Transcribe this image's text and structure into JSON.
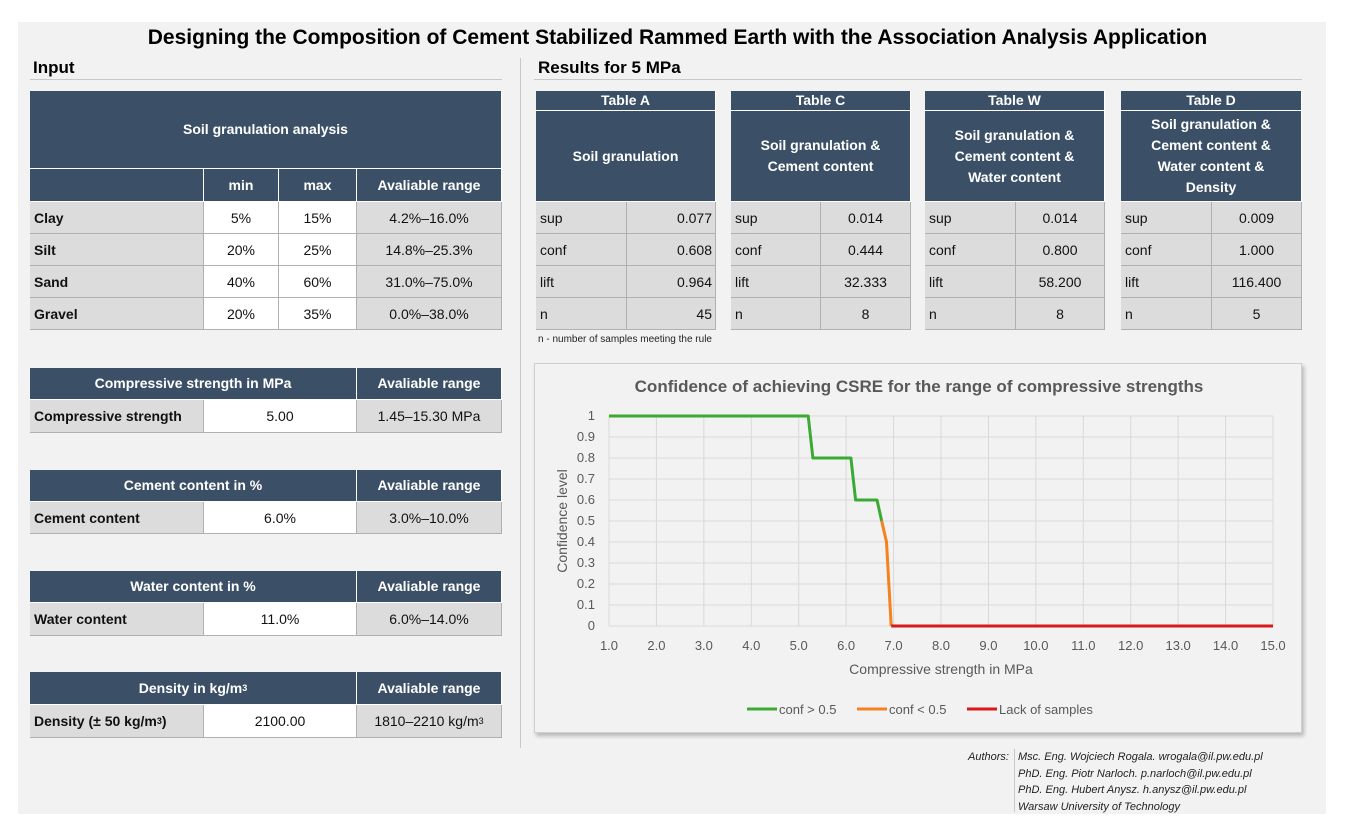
{
  "title": "Designing the Composition of Cement Stabilized Rammed Earth with the Association Analysis Application",
  "input": {
    "heading": "Input",
    "soil": {
      "header": "Soil granulation analysis",
      "cols": [
        "min",
        "max",
        "Avaliable range"
      ],
      "rows": [
        {
          "name": "Clay",
          "min": "5%",
          "max": "15%",
          "range": "4.2%–16.0%"
        },
        {
          "name": "Silt",
          "min": "20%",
          "max": "25%",
          "range": "14.8%–25.3%"
        },
        {
          "name": "Sand",
          "min": "40%",
          "max": "60%",
          "range": "31.0%–75.0%"
        },
        {
          "name": "Gravel",
          "min": "20%",
          "max": "35%",
          "range": "0.0%–38.0%"
        }
      ]
    },
    "strength": {
      "header": "Compressive strength in MPa",
      "range_header": "Avaliable range",
      "label": "Compressive strength",
      "value": "5.00",
      "range": "1.45–15.30 MPa"
    },
    "cement": {
      "header": "Cement content in %",
      "range_header": "Avaliable range",
      "label": "Cement content",
      "value": "6.0%",
      "range": "3.0%–10.0%"
    },
    "water": {
      "header": "Water content in %",
      "range_header": "Avaliable range",
      "label": "Water content",
      "value": "11.0%",
      "range": "6.0%–14.0%"
    },
    "density": {
      "header": "Density in kg/m",
      "header_sup": "3",
      "range_header": "Avaliable range",
      "label": "Density (± 50 kg/m",
      "label_sup": "3",
      "label_end": ")",
      "value": "2100.00",
      "range": "1810–2210 kg/m",
      "range_sup": "3"
    }
  },
  "results": {
    "heading": "Results for 5 MPa",
    "note": "n - number of samples meeting the rule",
    "tables": [
      {
        "name": "Table A",
        "desc": "Soil granulation",
        "rows": [
          [
            "sup",
            "0.077"
          ],
          [
            "conf",
            "0.608"
          ],
          [
            "lift",
            "0.964"
          ],
          [
            "n",
            "45"
          ]
        ]
      },
      {
        "name": "Table C",
        "desc": "Soil granulation & Cement content",
        "rows": [
          [
            "sup",
            "0.014"
          ],
          [
            "conf",
            "0.444"
          ],
          [
            "lift",
            "32.333"
          ],
          [
            "n",
            "8"
          ]
        ]
      },
      {
        "name": "Table W",
        "desc": "Soil granulation & Cement content & Water content",
        "rows": [
          [
            "sup",
            "0.014"
          ],
          [
            "conf",
            "0.800"
          ],
          [
            "lift",
            "58.200"
          ],
          [
            "n",
            "8"
          ]
        ]
      },
      {
        "name": "Table D",
        "desc": "Soil granulation & Cement content & Water content & Density",
        "rows": [
          [
            "sup",
            "0.009"
          ],
          [
            "conf",
            "1.000"
          ],
          [
            "lift",
            "116.400"
          ],
          [
            "n",
            "5"
          ]
        ]
      }
    ]
  },
  "chart_data": {
    "type": "line",
    "title": "Confidence of achieving CSRE for the range of compressive strengths",
    "xlabel": "Compressive strength in MPa",
    "ylabel": "Confidence level",
    "xlim": [
      1.0,
      15.0
    ],
    "ylim": [
      0,
      1
    ],
    "x_ticks": [
      "1.0",
      "2.0",
      "3.0",
      "4.0",
      "5.0",
      "6.0",
      "7.0",
      "8.0",
      "9.0",
      "10.0",
      "11.0",
      "12.0",
      "13.0",
      "14.0",
      "15.0"
    ],
    "y_ticks": [
      "0",
      "0.1",
      "0.2",
      "0.3",
      "0.4",
      "0.5",
      "0.6",
      "0.7",
      "0.8",
      "0.9",
      "1"
    ],
    "series": [
      {
        "name": "conf > 0.5",
        "color": "#3aaa35",
        "points": [
          [
            1.0,
            1.0
          ],
          [
            5.2,
            1.0
          ],
          [
            5.3,
            0.8
          ],
          [
            6.1,
            0.8
          ],
          [
            6.2,
            0.6
          ],
          [
            6.65,
            0.6
          ],
          [
            6.75,
            0.5
          ]
        ]
      },
      {
        "name": "conf < 0.5",
        "color": "#f58220",
        "points": [
          [
            6.75,
            0.5
          ],
          [
            6.85,
            0.4
          ],
          [
            6.95,
            0.0
          ]
        ]
      },
      {
        "name": "Lack of samples",
        "color": "#d7191c",
        "points": [
          [
            6.95,
            0.0
          ],
          [
            15.0,
            0.0
          ]
        ]
      }
    ],
    "legend": "bottom",
    "grid": true
  },
  "authors": {
    "label": "Authors:",
    "lines": [
      "Msc. Eng. Wojciech Rogala. wrogala@il.pw.edu.pl",
      "PhD. Eng. Piotr Narloch. p.narloch@il.pw.edu.pl",
      "PhD. Eng. Hubert Anysz. h.anysz@il.pw.edu.pl",
      "Warsaw University of Technology"
    ]
  }
}
